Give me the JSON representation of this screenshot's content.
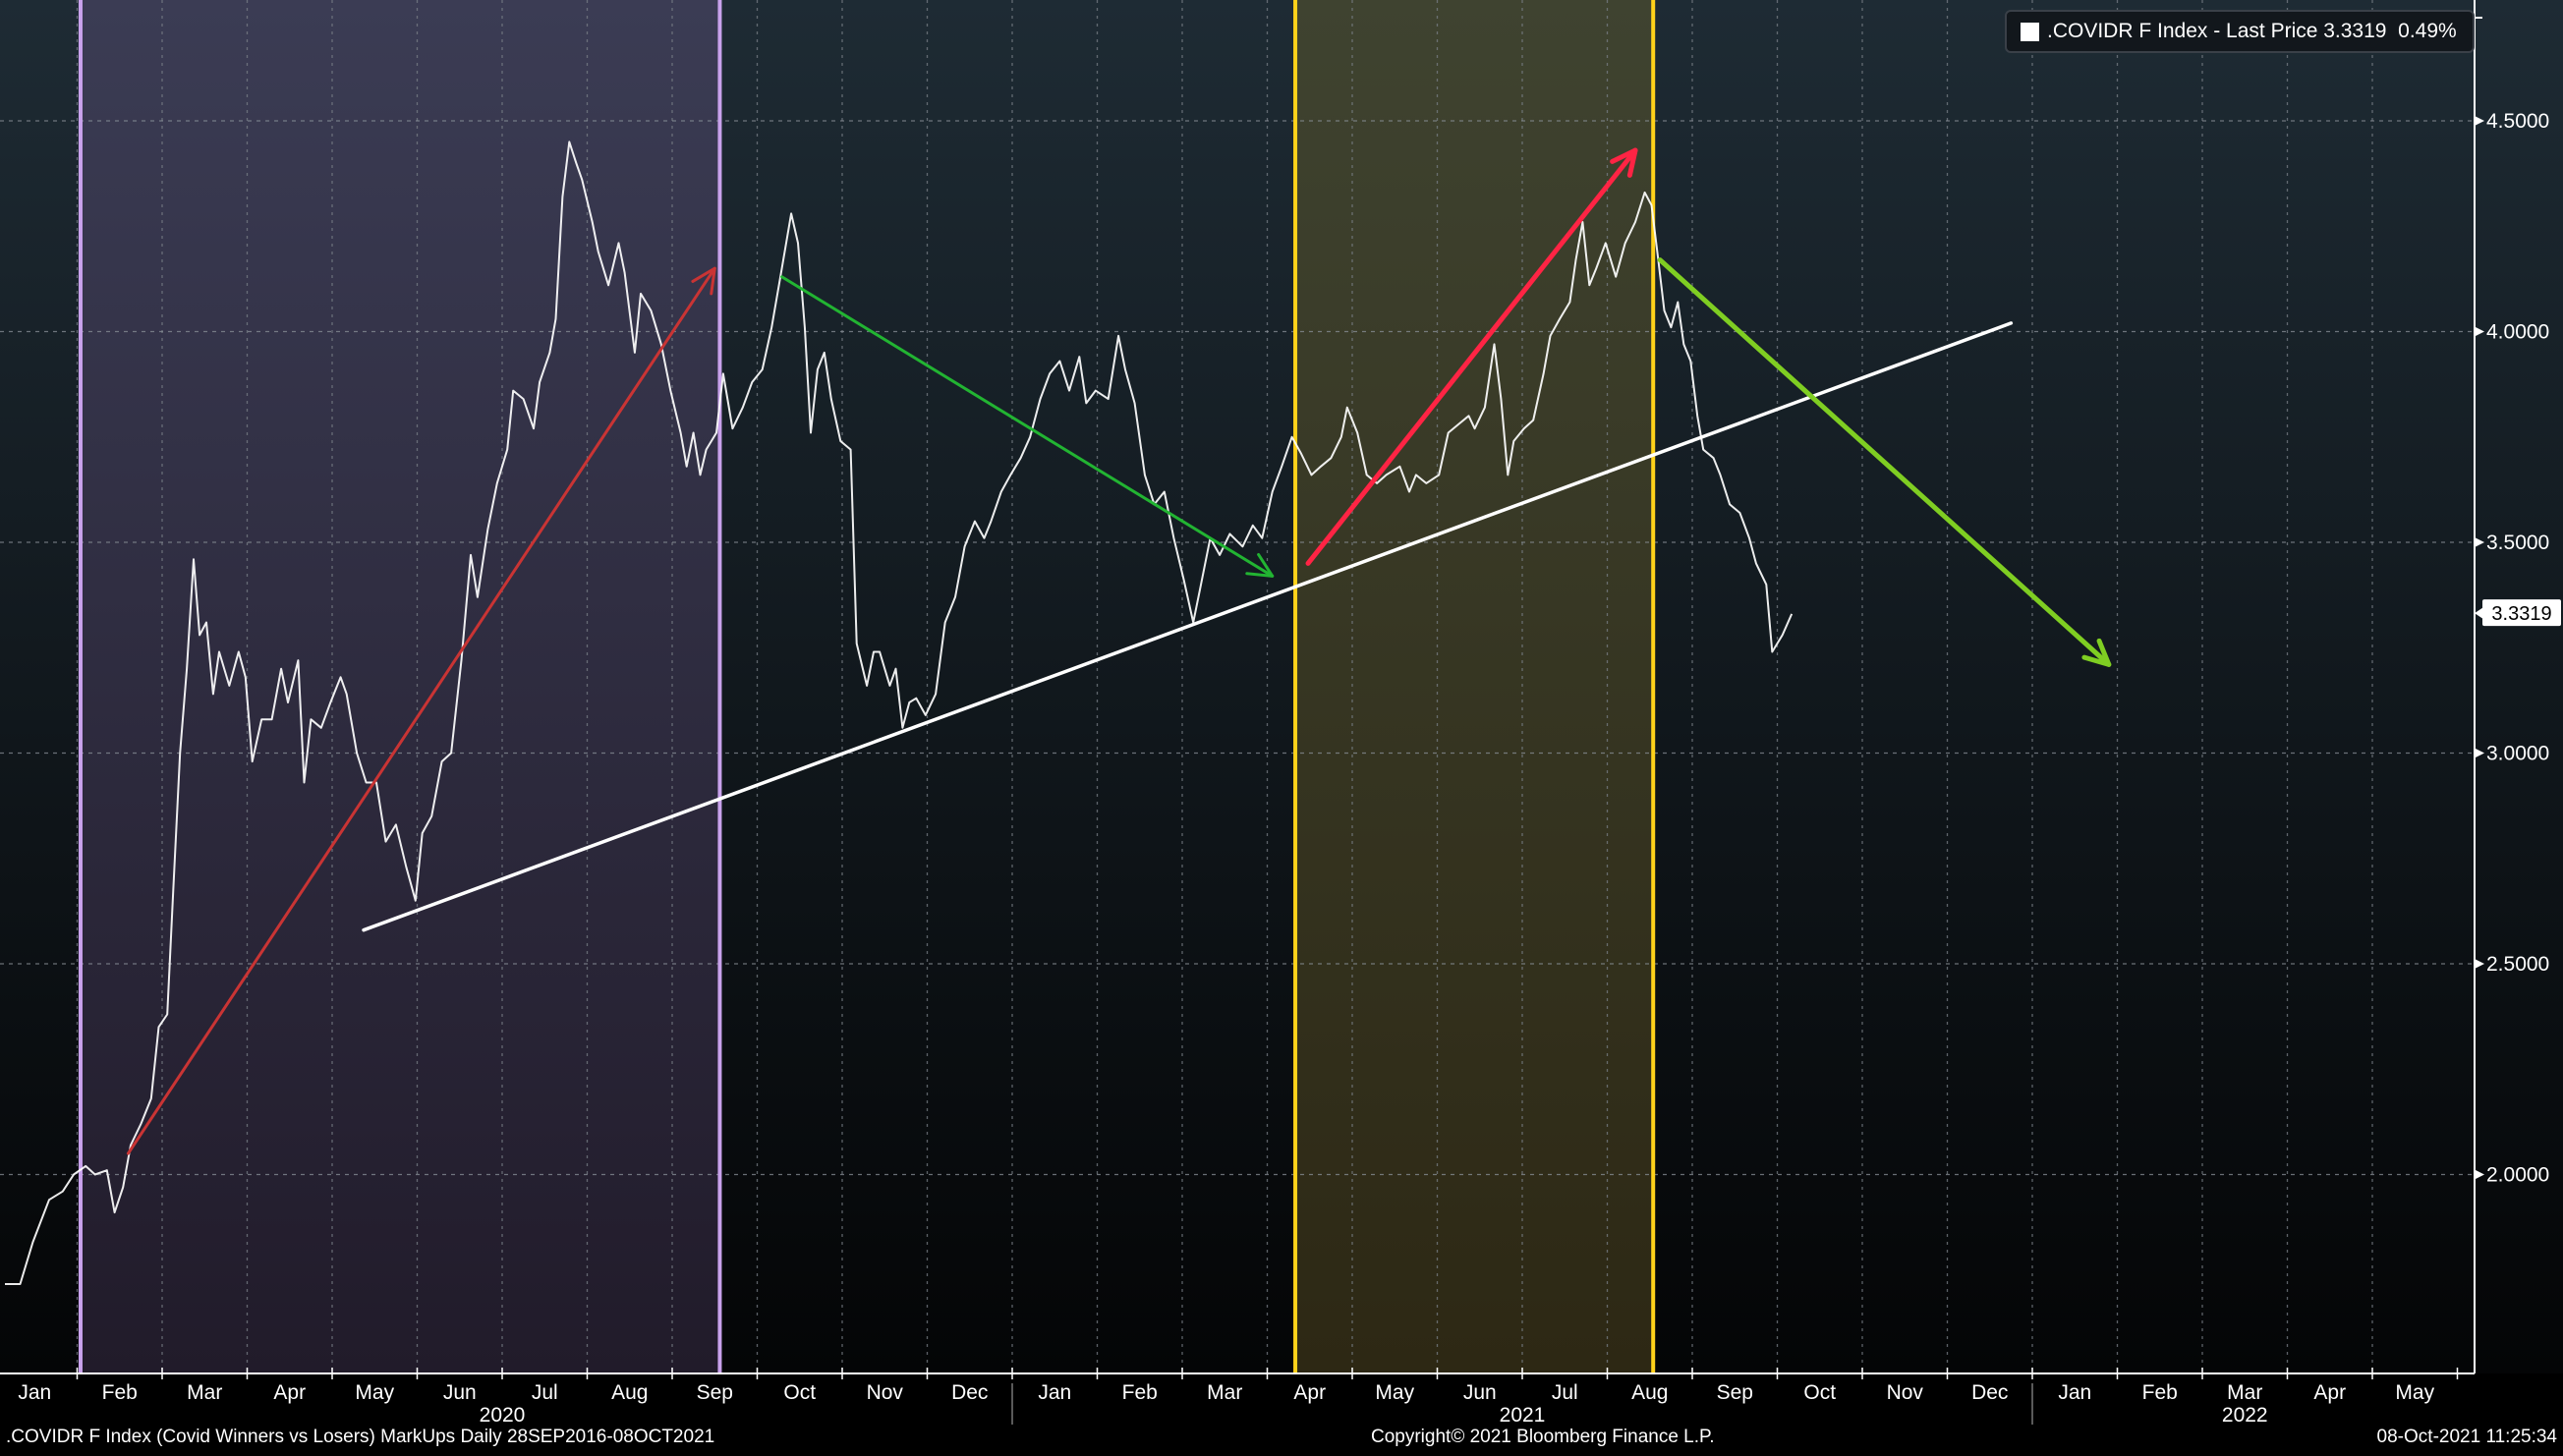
{
  "legend": {
    "label": ".COVIDR F Index - Last Price 3.3319  0.49%",
    "swatch_color": "#ffffff"
  },
  "footer": {
    "title": ".COVIDR F Index (Covid Winners vs Losers) MarkUps  Daily 28SEP2016-08OCT2021",
    "copyright": "Copyright© 2021 Bloomberg Finance L.P.",
    "timestamp": "08-Oct-2021 11:25:34"
  },
  "chart_data": {
    "type": "line",
    "title": ".COVIDR F Index (Covid Winners vs Losers)",
    "x_unit": "months since Jan 2020",
    "xlim": [
      0,
      29
    ],
    "ylim": [
      1.53,
      4.79
    ],
    "grid": true,
    "legend_position": "top-right",
    "y_axis_side": "right",
    "y_ticks": [
      "4.5000",
      "4.0000",
      "3.5000",
      "3.0000",
      "2.5000",
      "2.0000"
    ],
    "y_tick_values": [
      4.5,
      4.0,
      3.5,
      3.0,
      2.5,
      2.0
    ],
    "last_price_label": "3.3319",
    "last_price": 3.3319,
    "month_labels": [
      "Jan",
      "Feb",
      "Mar",
      "Apr",
      "May",
      "Jun",
      "Jul",
      "Aug",
      "Sep",
      "Oct",
      "Nov",
      "Dec",
      "Jan",
      "Feb",
      "Mar",
      "Apr",
      "May",
      "Jun",
      "Jul",
      "Aug",
      "Sep",
      "Oct",
      "Nov",
      "Dec",
      "Jan",
      "Feb",
      "Mar",
      "Apr",
      "May"
    ],
    "year_labels": [
      {
        "label": "2020",
        "month_center": 6
      },
      {
        "label": "2021",
        "month_center": 18
      },
      {
        "label": "2022",
        "month_center": 26.5
      }
    ],
    "series": [
      {
        "name": ".COVIDR F Index",
        "color": "#ffffff",
        "points": [
          [
            0.15,
            1.74
          ],
          [
            0.33,
            1.74
          ],
          [
            0.48,
            1.84
          ],
          [
            0.67,
            1.94
          ],
          [
            0.83,
            1.96
          ],
          [
            0.96,
            2.0
          ],
          [
            1.1,
            2.02
          ],
          [
            1.21,
            2.0
          ],
          [
            1.35,
            2.01
          ],
          [
            1.44,
            1.91
          ],
          [
            1.54,
            1.97
          ],
          [
            1.63,
            2.07
          ],
          [
            1.75,
            2.12
          ],
          [
            1.87,
            2.18
          ],
          [
            1.96,
            2.35
          ],
          [
            2.06,
            2.38
          ],
          [
            2.13,
            2.67
          ],
          [
            2.21,
            3.0
          ],
          [
            2.29,
            3.2
          ],
          [
            2.37,
            3.46
          ],
          [
            2.44,
            3.28
          ],
          [
            2.52,
            3.31
          ],
          [
            2.6,
            3.14
          ],
          [
            2.67,
            3.24
          ],
          [
            2.79,
            3.16
          ],
          [
            2.9,
            3.24
          ],
          [
            2.98,
            3.18
          ],
          [
            3.06,
            2.98
          ],
          [
            3.17,
            3.08
          ],
          [
            3.29,
            3.08
          ],
          [
            3.4,
            3.2
          ],
          [
            3.48,
            3.12
          ],
          [
            3.6,
            3.22
          ],
          [
            3.67,
            2.93
          ],
          [
            3.75,
            3.08
          ],
          [
            3.87,
            3.06
          ],
          [
            3.98,
            3.12
          ],
          [
            4.1,
            3.18
          ],
          [
            4.17,
            3.14
          ],
          [
            4.29,
            3.0
          ],
          [
            4.4,
            2.93
          ],
          [
            4.52,
            2.93
          ],
          [
            4.63,
            2.79
          ],
          [
            4.75,
            2.83
          ],
          [
            4.87,
            2.73
          ],
          [
            4.98,
            2.65
          ],
          [
            5.06,
            2.81
          ],
          [
            5.17,
            2.85
          ],
          [
            5.29,
            2.98
          ],
          [
            5.4,
            3.0
          ],
          [
            5.52,
            3.22
          ],
          [
            5.63,
            3.47
          ],
          [
            5.71,
            3.37
          ],
          [
            5.83,
            3.53
          ],
          [
            5.94,
            3.64
          ],
          [
            6.06,
            3.72
          ],
          [
            6.13,
            3.86
          ],
          [
            6.25,
            3.84
          ],
          [
            6.37,
            3.77
          ],
          [
            6.44,
            3.88
          ],
          [
            6.56,
            3.95
          ],
          [
            6.63,
            4.03
          ],
          [
            6.71,
            4.32
          ],
          [
            6.79,
            4.45
          ],
          [
            6.87,
            4.4
          ],
          [
            6.94,
            4.36
          ],
          [
            7.06,
            4.26
          ],
          [
            7.13,
            4.19
          ],
          [
            7.25,
            4.11
          ],
          [
            7.37,
            4.21
          ],
          [
            7.44,
            4.14
          ],
          [
            7.56,
            3.95
          ],
          [
            7.63,
            4.09
          ],
          [
            7.75,
            4.05
          ],
          [
            7.87,
            3.97
          ],
          [
            7.98,
            3.86
          ],
          [
            8.1,
            3.76
          ],
          [
            8.17,
            3.68
          ],
          [
            8.25,
            3.76
          ],
          [
            8.33,
            3.66
          ],
          [
            8.4,
            3.72
          ],
          [
            8.52,
            3.76
          ],
          [
            8.6,
            3.9
          ],
          [
            8.71,
            3.77
          ],
          [
            8.83,
            3.82
          ],
          [
            8.94,
            3.88
          ],
          [
            9.06,
            3.91
          ],
          [
            9.17,
            4.01
          ],
          [
            9.29,
            4.15
          ],
          [
            9.4,
            4.28
          ],
          [
            9.48,
            4.21
          ],
          [
            9.56,
            4.01
          ],
          [
            9.63,
            3.76
          ],
          [
            9.71,
            3.91
          ],
          [
            9.79,
            3.95
          ],
          [
            9.87,
            3.84
          ],
          [
            9.98,
            3.74
          ],
          [
            10.1,
            3.72
          ],
          [
            10.17,
            3.26
          ],
          [
            10.29,
            3.16
          ],
          [
            10.37,
            3.24
          ],
          [
            10.44,
            3.24
          ],
          [
            10.56,
            3.16
          ],
          [
            10.63,
            3.2
          ],
          [
            10.71,
            3.06
          ],
          [
            10.79,
            3.12
          ],
          [
            10.87,
            3.13
          ],
          [
            10.98,
            3.09
          ],
          [
            11.1,
            3.14
          ],
          [
            11.21,
            3.31
          ],
          [
            11.33,
            3.37
          ],
          [
            11.44,
            3.49
          ],
          [
            11.56,
            3.55
          ],
          [
            11.67,
            3.51
          ],
          [
            11.75,
            3.55
          ],
          [
            11.87,
            3.62
          ],
          [
            11.98,
            3.66
          ],
          [
            12.1,
            3.7
          ],
          [
            12.21,
            3.75
          ],
          [
            12.33,
            3.84
          ],
          [
            12.44,
            3.9
          ],
          [
            12.56,
            3.93
          ],
          [
            12.67,
            3.86
          ],
          [
            12.79,
            3.94
          ],
          [
            12.87,
            3.83
          ],
          [
            12.98,
            3.86
          ],
          [
            13.13,
            3.84
          ],
          [
            13.25,
            3.99
          ],
          [
            13.33,
            3.91
          ],
          [
            13.44,
            3.83
          ],
          [
            13.56,
            3.66
          ],
          [
            13.67,
            3.59
          ],
          [
            13.79,
            3.62
          ],
          [
            13.9,
            3.51
          ],
          [
            14.02,
            3.41
          ],
          [
            14.13,
            3.31
          ],
          [
            14.21,
            3.39
          ],
          [
            14.33,
            3.51
          ],
          [
            14.44,
            3.47
          ],
          [
            14.56,
            3.52
          ],
          [
            14.71,
            3.49
          ],
          [
            14.83,
            3.54
          ],
          [
            14.94,
            3.51
          ],
          [
            15.06,
            3.62
          ],
          [
            15.17,
            3.68
          ],
          [
            15.29,
            3.75
          ],
          [
            15.4,
            3.71
          ],
          [
            15.52,
            3.66
          ],
          [
            15.63,
            3.68
          ],
          [
            15.75,
            3.7
          ],
          [
            15.87,
            3.75
          ],
          [
            15.94,
            3.82
          ],
          [
            16.06,
            3.76
          ],
          [
            16.17,
            3.66
          ],
          [
            16.29,
            3.64
          ],
          [
            16.4,
            3.66
          ],
          [
            16.56,
            3.68
          ],
          [
            16.67,
            3.62
          ],
          [
            16.75,
            3.66
          ],
          [
            16.87,
            3.64
          ],
          [
            17.02,
            3.66
          ],
          [
            17.13,
            3.76
          ],
          [
            17.25,
            3.78
          ],
          [
            17.37,
            3.8
          ],
          [
            17.44,
            3.77
          ],
          [
            17.56,
            3.82
          ],
          [
            17.67,
            3.97
          ],
          [
            17.75,
            3.84
          ],
          [
            17.83,
            3.66
          ],
          [
            17.9,
            3.74
          ],
          [
            18.02,
            3.77
          ],
          [
            18.13,
            3.79
          ],
          [
            18.25,
            3.9
          ],
          [
            18.33,
            3.99
          ],
          [
            18.44,
            4.03
          ],
          [
            18.56,
            4.07
          ],
          [
            18.63,
            4.17
          ],
          [
            18.71,
            4.26
          ],
          [
            18.79,
            4.11
          ],
          [
            18.87,
            4.15
          ],
          [
            18.98,
            4.21
          ],
          [
            19.1,
            4.13
          ],
          [
            19.21,
            4.21
          ],
          [
            19.33,
            4.26
          ],
          [
            19.44,
            4.33
          ],
          [
            19.52,
            4.3
          ],
          [
            19.6,
            4.17
          ],
          [
            19.67,
            4.05
          ],
          [
            19.75,
            4.01
          ],
          [
            19.83,
            4.07
          ],
          [
            19.9,
            3.97
          ],
          [
            19.98,
            3.93
          ],
          [
            20.06,
            3.8
          ],
          [
            20.13,
            3.72
          ],
          [
            20.25,
            3.7
          ],
          [
            20.33,
            3.66
          ],
          [
            20.44,
            3.59
          ],
          [
            20.56,
            3.57
          ],
          [
            20.67,
            3.51
          ],
          [
            20.75,
            3.45
          ],
          [
            20.87,
            3.4
          ],
          [
            20.94,
            3.24
          ],
          [
            21.06,
            3.28
          ],
          [
            21.17,
            3.33
          ]
        ]
      }
    ],
    "highlight_bands": [
      {
        "name": "purple-band",
        "from": 1.04,
        "to": 8.56,
        "line_color": "#c9a2ec",
        "fill_top": "#3b3c54",
        "fill_bottom": "#211b2a"
      },
      {
        "name": "yellow-band",
        "from": 15.33,
        "to": 19.54,
        "line_color": "#ffd21a",
        "fill_top": "#3f4330",
        "fill_bottom": "#2d2814"
      }
    ],
    "annotations": [
      {
        "name": "red-uptrend-arrow-2020",
        "from": [
          1.6,
          2.05
        ],
        "to": [
          8.5,
          4.15
        ],
        "color": "#c93434",
        "width": 3,
        "arrow": "open"
      },
      {
        "name": "white-support-trendline",
        "from": [
          4.37,
          2.58
        ],
        "to": [
          23.75,
          4.02
        ],
        "color": "#ffffff",
        "width": 3.5,
        "arrow": "none"
      },
      {
        "name": "green-downtrend-arrow-2020",
        "from": [
          9.29,
          4.13
        ],
        "to": [
          15.06,
          3.42
        ],
        "color": "#22b432",
        "width": 3,
        "arrow": "open"
      },
      {
        "name": "red-uptrend-arrow-2021",
        "from": [
          15.48,
          3.45
        ],
        "to": [
          19.33,
          4.43
        ],
        "color": "#ff2444",
        "width": 5,
        "arrow": "open"
      },
      {
        "name": "lime-downtrend-arrow-2021",
        "from": [
          19.62,
          4.17
        ],
        "to": [
          24.9,
          3.21
        ],
        "color": "#7fce22",
        "width": 5,
        "arrow": "open"
      }
    ]
  }
}
